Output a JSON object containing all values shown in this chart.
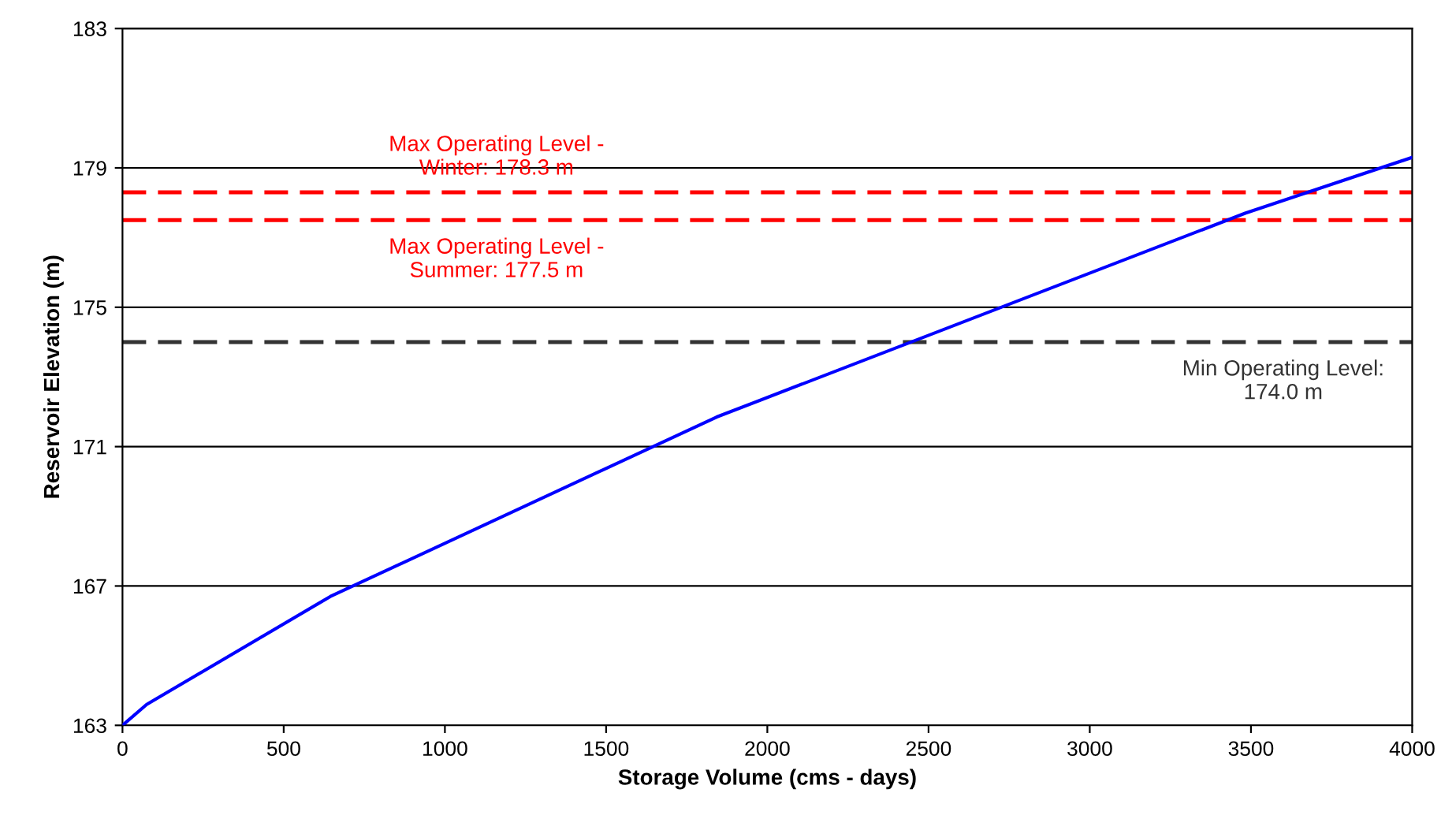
{
  "chart_data": {
    "type": "line",
    "xlabel": "Storage Volume (cms - days)",
    "ylabel": "Reservoir Elevation (m)",
    "x": [
      0,
      75,
      645,
      1843,
      3482,
      4000
    ],
    "series": [
      {
        "color": "#0000ff",
        "values": [
          163,
          163.6,
          166.7,
          171.85,
          177.7,
          179.3
        ]
      }
    ],
    "xlim": [
      0,
      4000
    ],
    "xticks": [
      0,
      500,
      1000,
      1500,
      2000,
      2500,
      3000,
      3500,
      4000
    ],
    "ylim": [
      163,
      183
    ],
    "yticks": [
      163,
      167,
      171,
      175,
      179,
      183
    ],
    "grid": "y",
    "marker": "none",
    "line_style": "solid",
    "ref_lines": [
      {
        "axis": "y",
        "value": 178.3,
        "label": "Max Operating Level -\nWinter: 178.3 m",
        "color": "#ff0000",
        "line_style": "dashed"
      },
      {
        "axis": "y",
        "value": 177.5,
        "label": "Max Operating Level -\nSummer: 177.5 m",
        "color": "#ff0000",
        "line_style": "dashed"
      },
      {
        "axis": "y",
        "value": 174.0,
        "label": "Min Operating Level:\n174.0 m",
        "color": "#333333",
        "line_style": "dashed"
      }
    ]
  }
}
